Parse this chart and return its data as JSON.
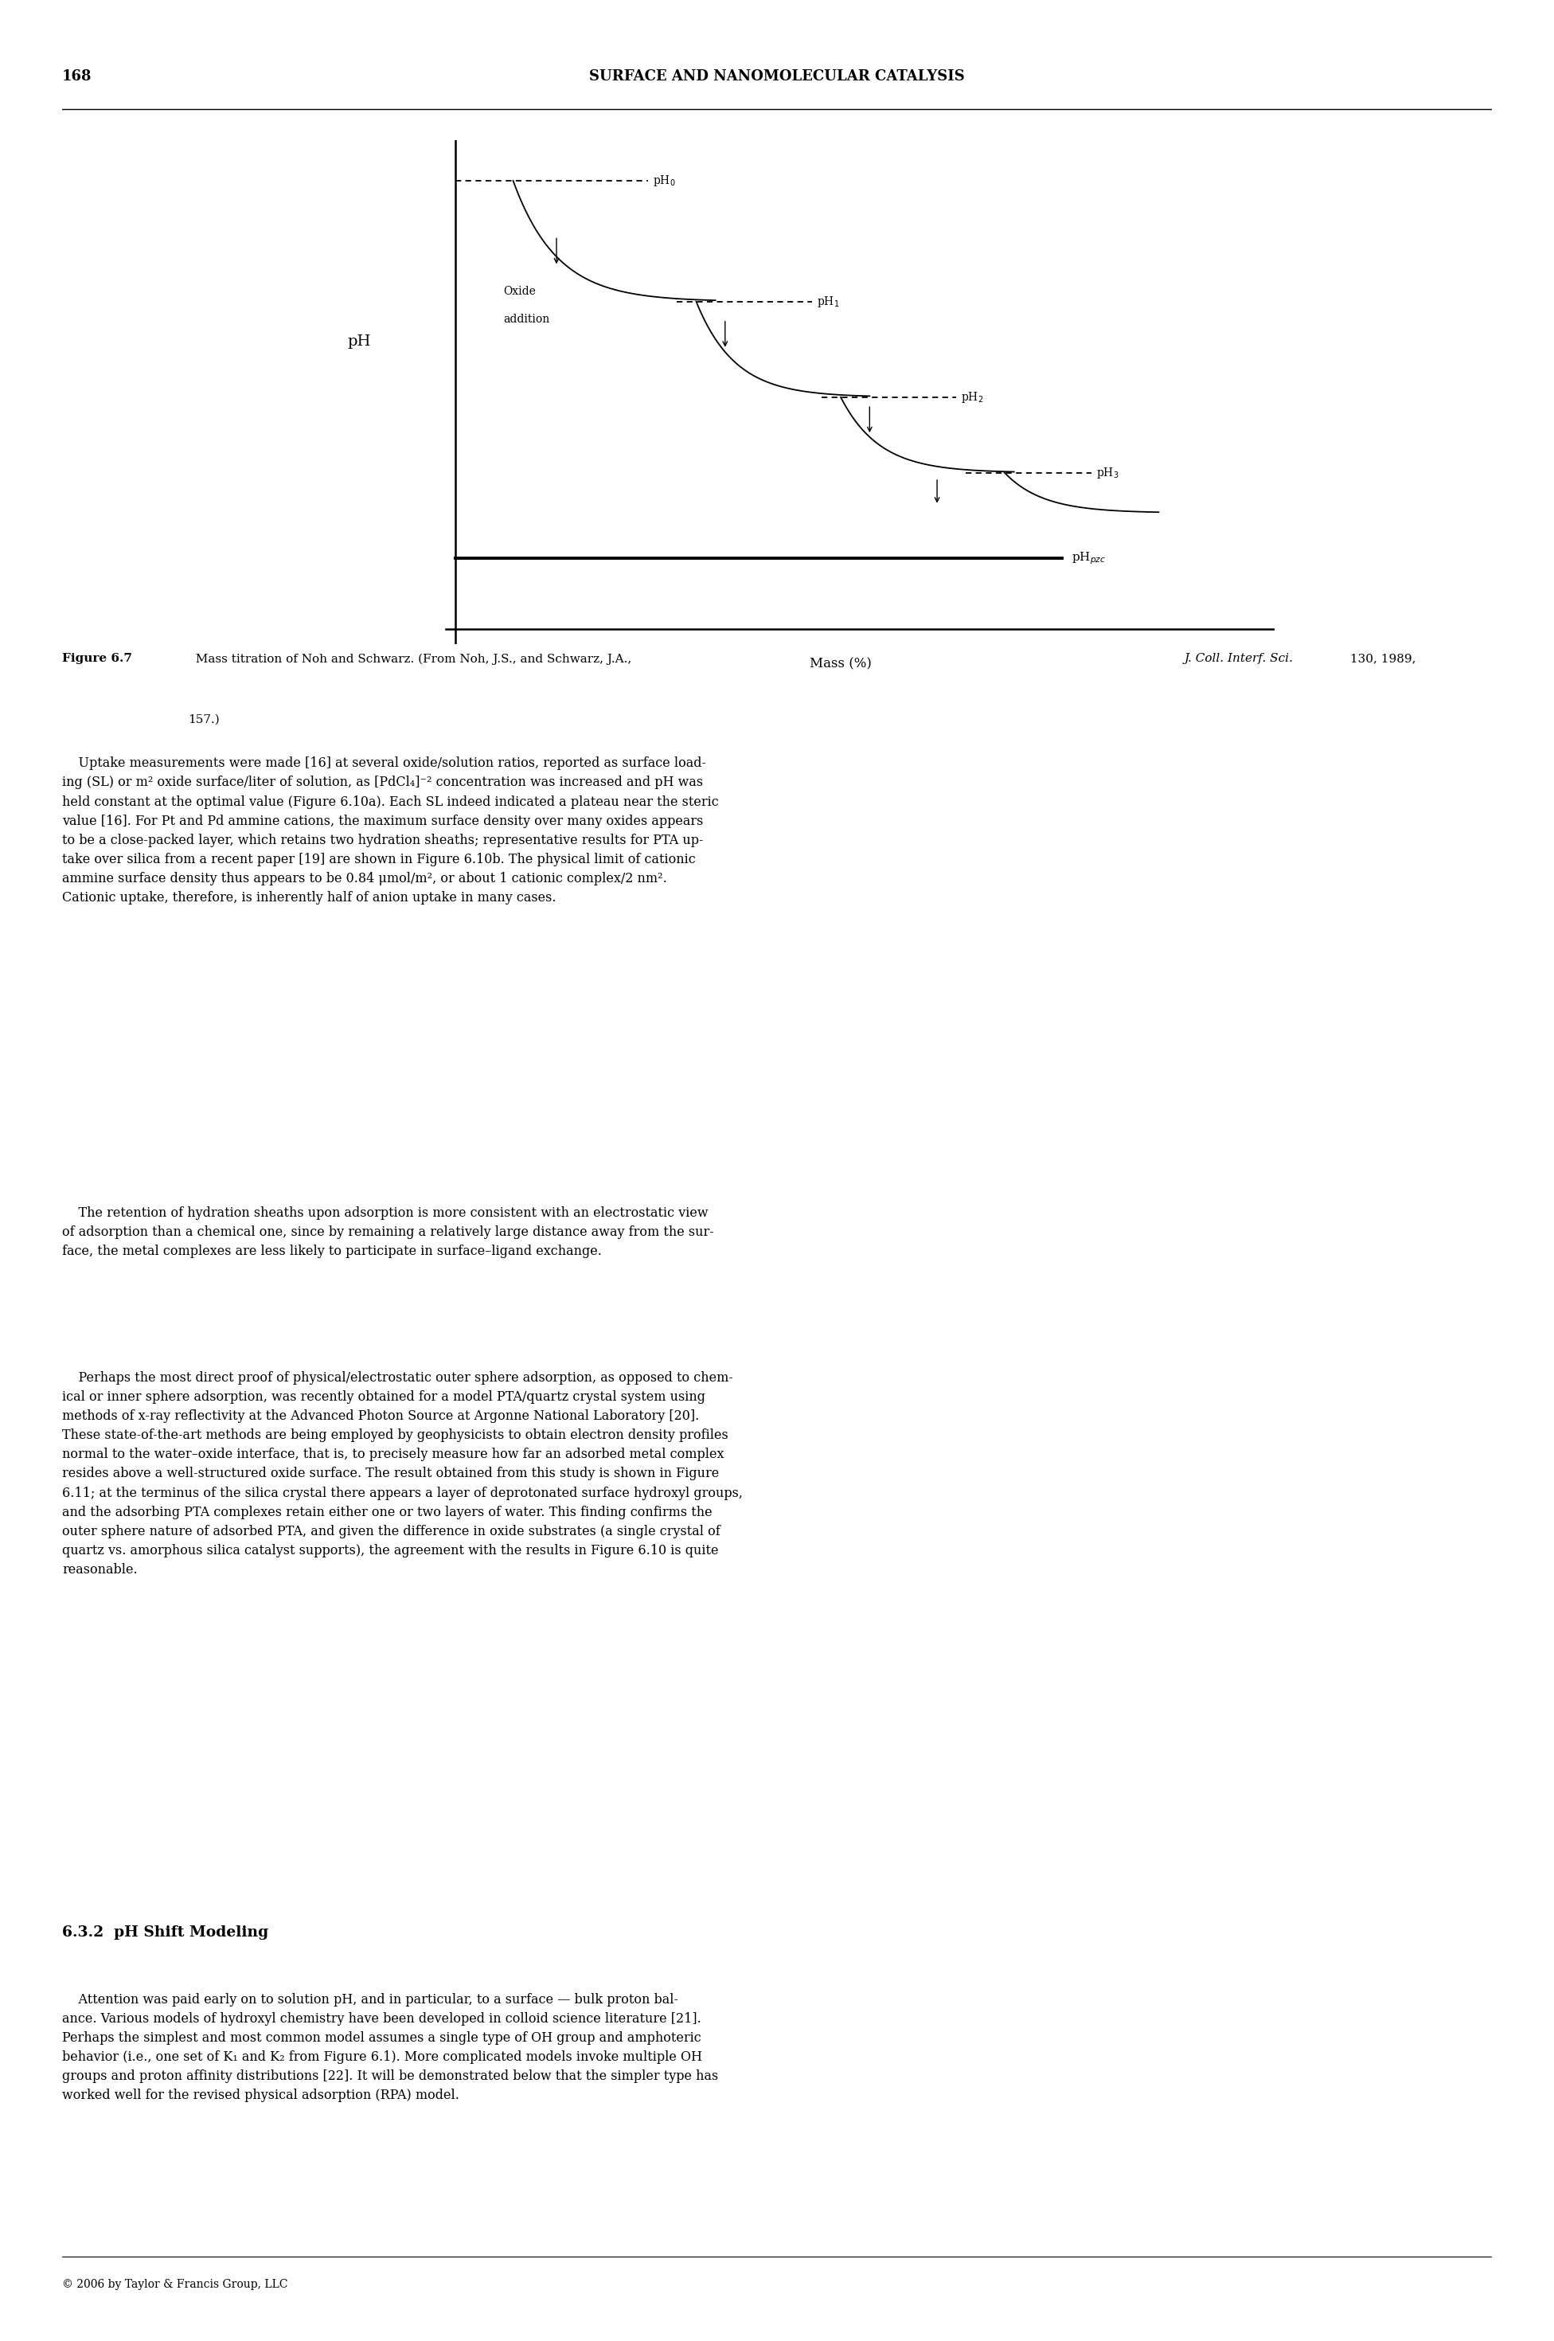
{
  "page_number": "168",
  "header_title": "SURFACE AND NANOMOLECULAR CATALYSIS",
  "footer": "© 2006 by Taylor & Francis Group, LLC"
}
